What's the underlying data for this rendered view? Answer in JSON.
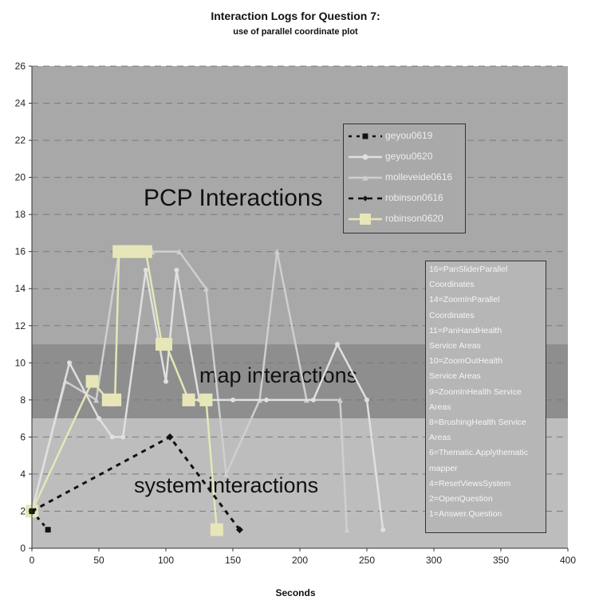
{
  "chart_data": {
    "type": "line",
    "title": "Interaction Logs for Question 7:",
    "subtitle": "use of parallel coordinate plot",
    "xlabel": "Seconds",
    "ylabel": "",
    "xlim": [
      0,
      400
    ],
    "ylim": [
      0,
      26
    ],
    "x_ticks": [
      0,
      50,
      100,
      150,
      200,
      250,
      300,
      350,
      400
    ],
    "y_ticks": [
      0,
      2,
      4,
      6,
      8,
      10,
      12,
      14,
      16,
      18,
      20,
      22,
      24,
      26
    ],
    "grid": "horizontal dashed",
    "legend_position": "upper-right",
    "regions": [
      {
        "label": "PCP Interactions",
        "y_from": 11,
        "y_to": 26,
        "color": "#a8a8a8"
      },
      {
        "label": "map interactions",
        "y_from": 7,
        "y_to": 11,
        "color": "#8e8e8e"
      },
      {
        "label": "system interactions",
        "y_from": 0,
        "y_to": 7,
        "color": "#bdbdbd"
      }
    ],
    "series": [
      {
        "name": "geyou0619",
        "color": "#111111",
        "dash": "4,6",
        "marker": "square",
        "points": [
          [
            0,
            2
          ],
          [
            12,
            1
          ]
        ]
      },
      {
        "name": "geyou0620",
        "color": "#e0e0e0",
        "dash": "",
        "marker": "circle",
        "points": [
          [
            0,
            2
          ],
          [
            28,
            10
          ],
          [
            50,
            7
          ],
          [
            60,
            6
          ],
          [
            68,
            6
          ],
          [
            85,
            15
          ],
          [
            100,
            9
          ],
          [
            108,
            15
          ],
          [
            125,
            8
          ],
          [
            150,
            8
          ],
          [
            175,
            8
          ],
          [
            210,
            8
          ],
          [
            228,
            11
          ],
          [
            250,
            8
          ],
          [
            262,
            1
          ]
        ]
      },
      {
        "name": "molleveide0616",
        "color": "#cfcfcf",
        "dash": "",
        "marker": "triangle",
        "points": [
          [
            0,
            2
          ],
          [
            25,
            9
          ],
          [
            48,
            8
          ],
          [
            65,
            16
          ],
          [
            90,
            16
          ],
          [
            110,
            16
          ],
          [
            130,
            14
          ],
          [
            145,
            4
          ],
          [
            170,
            8
          ],
          [
            183,
            16
          ],
          [
            205,
            8
          ],
          [
            230,
            8
          ],
          [
            235,
            1
          ]
        ]
      },
      {
        "name": "robinson0616",
        "color": "#111111",
        "dash": "6,6",
        "marker": "diamond",
        "points": [
          [
            0,
            2
          ],
          [
            103,
            6
          ],
          [
            155,
            1
          ]
        ]
      },
      {
        "name": "robinson0620",
        "color": "#e6e6b8",
        "dash": "",
        "marker": "square",
        "points": [
          [
            0,
            2
          ],
          [
            45,
            9
          ],
          [
            57,
            8
          ],
          [
            62,
            8
          ],
          [
            65,
            16
          ],
          [
            72,
            16
          ],
          [
            78,
            16
          ],
          [
            85,
            16
          ],
          [
            97,
            11
          ],
          [
            100,
            11
          ],
          [
            117,
            8
          ],
          [
            130,
            8
          ],
          [
            138,
            1
          ]
        ]
      }
    ],
    "annotations": {
      "box_lines": [
        "16=PanSliderParallel",
        "Coordinates",
        "14=ZoomInParallel",
        "Coordinates",
        "11=PanHandHealth",
        "Service Areas",
        "10=ZoomOutHealth",
        "Service Areas",
        "9=ZoomInHealth Service",
        "Areas",
        "8=BrushingHealth Service",
        "Areas",
        "6=Thematic.Applythematic",
        "mapper",
        "4=ResetViewsSystem",
        "2=OpenQuestion",
        "1=Answer.Question"
      ]
    }
  }
}
